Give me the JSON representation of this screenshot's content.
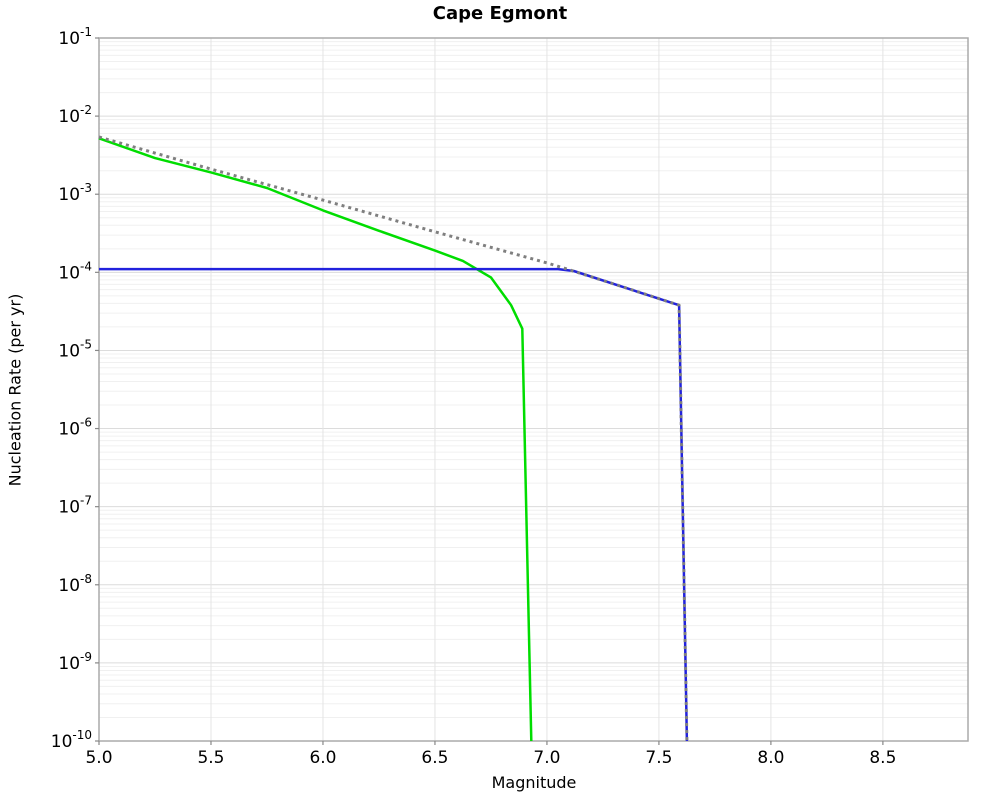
{
  "chart_data": {
    "type": "line",
    "title": "Cape Egmont",
    "xlabel": "Magnitude",
    "ylabel": "Nucleation Rate (per yr)",
    "xlim": [
      5.0,
      8.88
    ],
    "ylim": [
      1e-10,
      0.1
    ],
    "x_scale": "linear",
    "y_scale": "log",
    "grid": "major-and-log-minor",
    "legend": "none",
    "x_ticks": [
      5.0,
      5.5,
      6.0,
      6.5,
      7.0,
      7.5,
      8.0,
      8.5
    ],
    "x_tick_labels": [
      "5.0",
      "5.5",
      "6.0",
      "6.5",
      "7.0",
      "7.5",
      "8.0",
      "8.5"
    ],
    "y_tick_exponents": [
      -1,
      -2,
      -3,
      -4,
      -5,
      -6,
      -7,
      -8,
      -9,
      -10
    ],
    "series": [
      {
        "name": "series-green-tapered",
        "color": "#00dd00",
        "style": "solid",
        "width": 2.5,
        "points": [
          [
            5.0,
            0.0052
          ],
          [
            5.25,
            0.0029
          ],
          [
            5.5,
            0.0019
          ],
          [
            5.75,
            0.0012
          ],
          [
            6.0,
            0.00062
          ],
          [
            6.25,
            0.00034
          ],
          [
            6.5,
            0.00019
          ],
          [
            6.625,
            0.00014
          ],
          [
            6.75,
            8.6e-05
          ],
          [
            6.84,
            3.8e-05
          ],
          [
            6.89,
            1.9e-05
          ],
          [
            6.93,
            1e-10
          ]
        ]
      },
      {
        "name": "series-blue-rate",
        "color": "#2222dd",
        "style": "solid",
        "width": 2.5,
        "points": [
          [
            5.0,
            0.00011
          ],
          [
            7.05,
            0.00011
          ],
          [
            7.12,
            0.000104
          ],
          [
            7.59,
            3.8e-05
          ],
          [
            7.625,
            1e-10
          ]
        ]
      },
      {
        "name": "series-gray-dotted-reference",
        "color": "#7f7f7f",
        "style": "dotted",
        "width": 3,
        "points": [
          [
            5.0,
            0.0054
          ],
          [
            5.5,
            0.0021
          ],
          [
            6.0,
            0.00084
          ],
          [
            6.5,
            0.00033
          ],
          [
            7.0,
            0.000132
          ],
          [
            7.09,
            0.00011
          ],
          [
            7.3,
            7.1e-05
          ],
          [
            7.59,
            3.8e-05
          ],
          [
            7.625,
            1e-10
          ]
        ]
      }
    ]
  }
}
